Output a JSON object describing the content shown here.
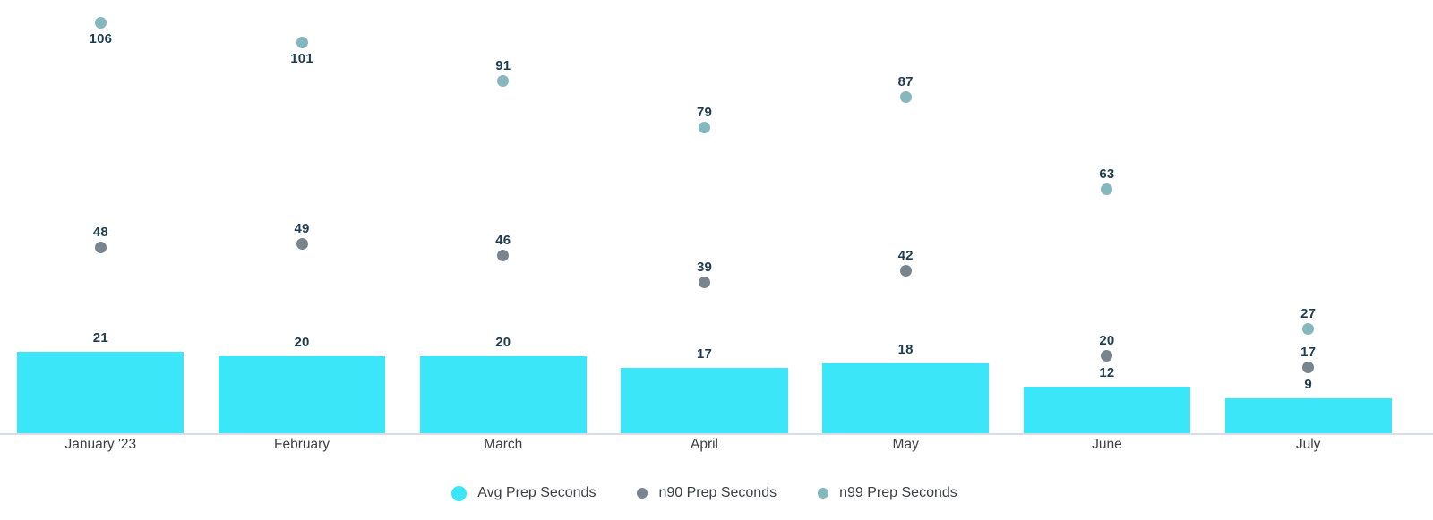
{
  "chart_data": {
    "type": "bar",
    "subtype": "bar-with-point-overlays",
    "categories": [
      "January '23",
      "February",
      "March",
      "April",
      "May",
      "June",
      "July"
    ],
    "series": [
      {
        "name": "Avg Prep Seconds",
        "mark": "bar",
        "color": "#3be6f9",
        "values": [
          21,
          20,
          20,
          17,
          18,
          12,
          9
        ]
      },
      {
        "name": "n90 Prep Seconds",
        "mark": "point",
        "color": "#78858f",
        "values": [
          48,
          49,
          46,
          39,
          42,
          20,
          17
        ]
      },
      {
        "name": "n99 Prep Seconds",
        "mark": "point",
        "color": "#85b7be",
        "values": [
          106,
          101,
          91,
          79,
          87,
          63,
          27
        ]
      }
    ],
    "title": "",
    "xlabel": "",
    "ylabel": "",
    "ylim": [
      0,
      112
    ],
    "grid": false,
    "y_axis_visible": false,
    "value_labels": true,
    "value_label_color": "#1e3d52",
    "axis_line_color": "#d9dde7",
    "legend_position": "bottom"
  },
  "legend": {
    "items": [
      {
        "label": "Avg Prep Seconds",
        "color": "#3be6f9",
        "swatch_size": 17
      },
      {
        "label": "n90 Prep Seconds",
        "color": "#78858f",
        "swatch_size": 12
      },
      {
        "label": "n99 Prep Seconds",
        "color": "#85b7be",
        "swatch_size": 12
      }
    ]
  }
}
